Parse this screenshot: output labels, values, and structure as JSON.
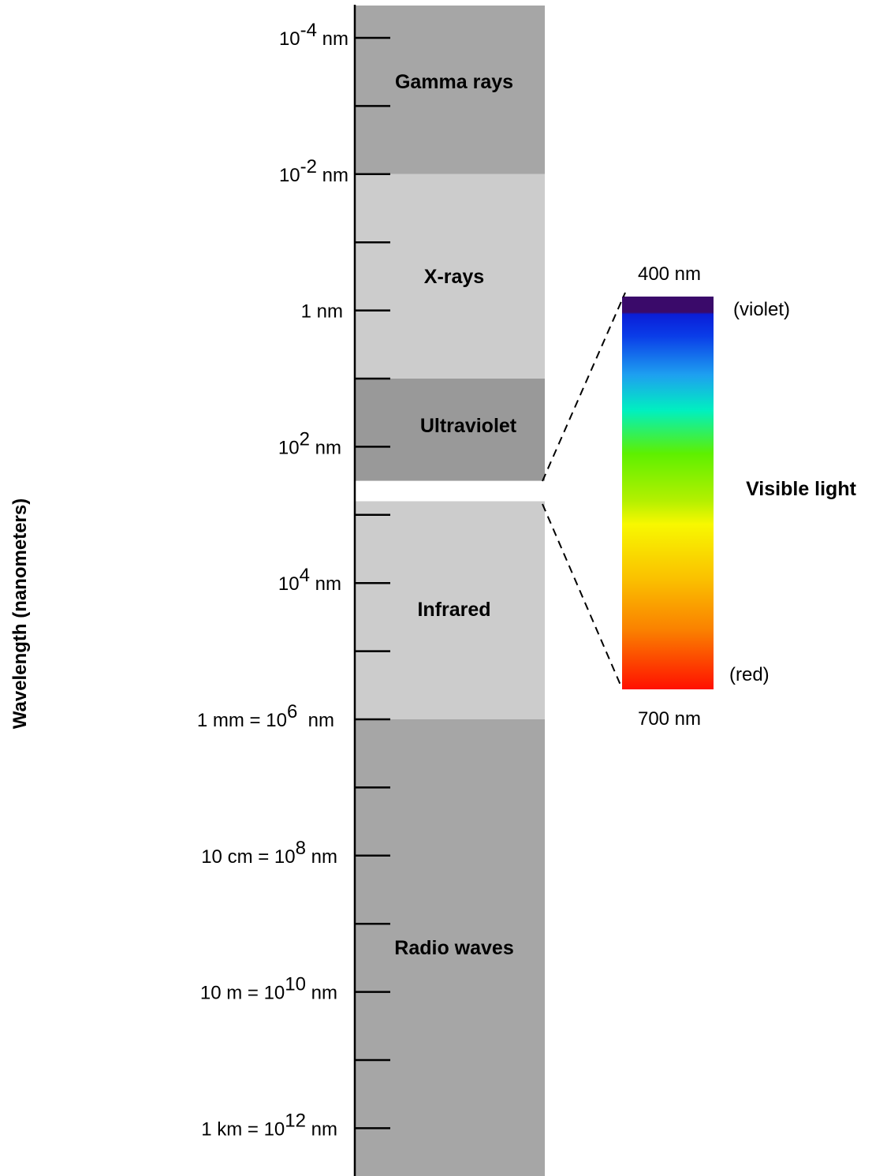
{
  "axis_title": "Wavelength (nanometers)",
  "bands": [
    {
      "id": "gamma",
      "label": "Gamma rays",
      "color": "#a6a6a6"
    },
    {
      "id": "xray",
      "label": "X-rays",
      "color": "#cccccc"
    },
    {
      "id": "uv",
      "label": "Ultraviolet",
      "color": "#999999"
    },
    {
      "id": "ir",
      "label": "Infrared",
      "color": "#cccccc"
    },
    {
      "id": "radio",
      "label": "Radio waves",
      "color": "#a6a6a6"
    }
  ],
  "ticks": [
    {
      "exp": -4,
      "main": "10",
      "sup": "-4",
      "suffix": " nm",
      "prefix": ""
    },
    {
      "exp": -2,
      "main": "10",
      "sup": "-2",
      "suffix": " nm",
      "prefix": ""
    },
    {
      "exp": 0,
      "main": "1 nm",
      "sup": "",
      "suffix": "",
      "prefix": ""
    },
    {
      "exp": 2,
      "main": "10",
      "sup": "2",
      "suffix": " nm",
      "prefix": ""
    },
    {
      "exp": 4,
      "main": "10",
      "sup": "4",
      "suffix": " nm",
      "prefix": ""
    },
    {
      "exp": 6,
      "main": "10",
      "sup": "6",
      "suffix": "  nm",
      "prefix": "1 mm = "
    },
    {
      "exp": 8,
      "main": "10",
      "sup": "8",
      "suffix": " nm",
      "prefix": "10 cm = "
    },
    {
      "exp": 10,
      "main": "10",
      "sup": "10",
      "suffix": " nm",
      "prefix": "10 m = "
    },
    {
      "exp": 12,
      "main": "10",
      "sup": "12",
      "suffix": " nm",
      "prefix": "1 km = "
    }
  ],
  "minor_ticks_exp": [
    -3,
    -1,
    1,
    3,
    5,
    7,
    9,
    11
  ],
  "visible": {
    "title": "Visible light",
    "top_label": "400 nm",
    "bottom_label": "700 nm",
    "top_color_label": "(violet)",
    "bottom_color_label": "(red)",
    "gradient_stops": [
      {
        "offset": 0.0,
        "color": "#3a0a6a"
      },
      {
        "offset": 0.04,
        "color": "#3a0a6a"
      },
      {
        "offset": 0.045,
        "color": "#0a1ed8"
      },
      {
        "offset": 0.1,
        "color": "#0a3ce8"
      },
      {
        "offset": 0.2,
        "color": "#1ea0f0"
      },
      {
        "offset": 0.29,
        "color": "#00f0c0"
      },
      {
        "offset": 0.4,
        "color": "#5ef000"
      },
      {
        "offset": 0.52,
        "color": "#b4f000"
      },
      {
        "offset": 0.58,
        "color": "#f8f800"
      },
      {
        "offset": 0.72,
        "color": "#fac000"
      },
      {
        "offset": 0.85,
        "color": "#fa8000"
      },
      {
        "offset": 1.0,
        "color": "#ff1000"
      }
    ]
  }
}
